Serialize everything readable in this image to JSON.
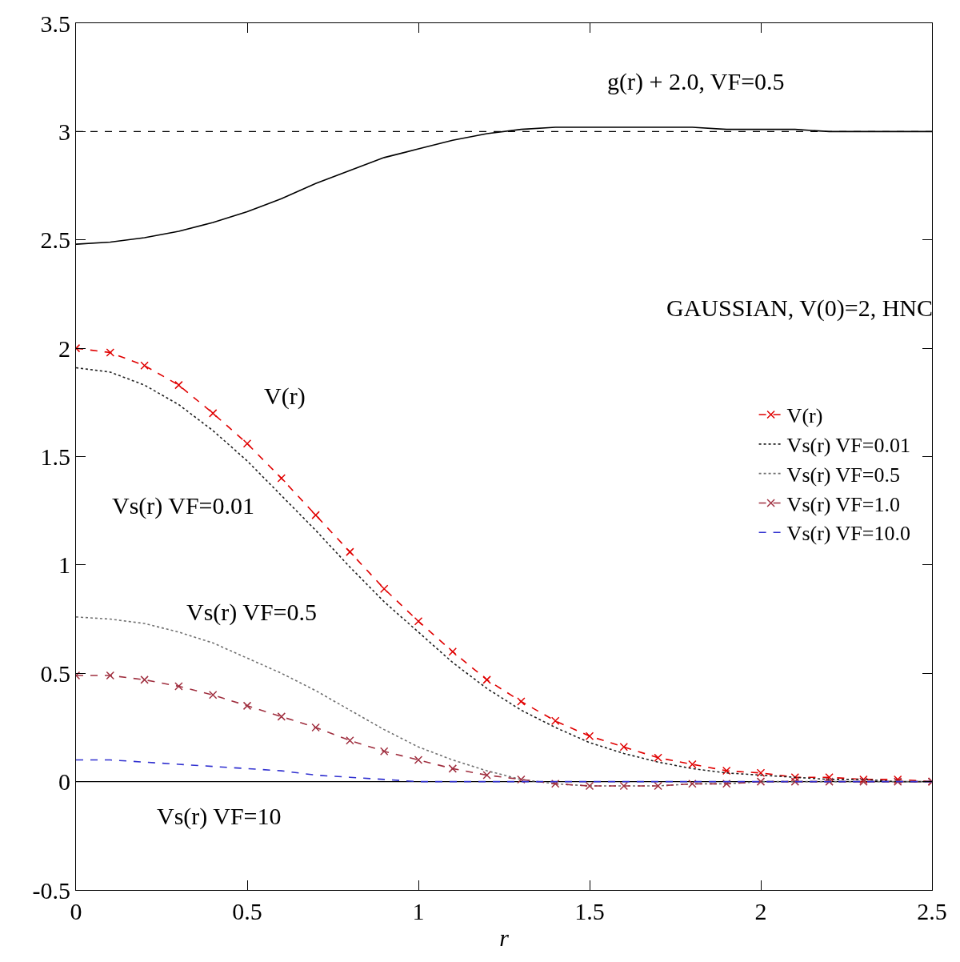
{
  "chart_data": {
    "type": "line",
    "xlabel": "r",
    "x": [
      0,
      0.1,
      0.2,
      0.3,
      0.4,
      0.5,
      0.6,
      0.7,
      0.8,
      0.9,
      1,
      1.1,
      1.2,
      1.3,
      1.4,
      1.5,
      1.6,
      1.7,
      1.8,
      1.9,
      2,
      2.1,
      2.2,
      2.3,
      2.4,
      2.5
    ],
    "series": [
      {
        "name": "V(r)",
        "color": "#e00000",
        "marker": "cross",
        "line_style": "dashed",
        "values": [
          2,
          1.98,
          1.92,
          1.83,
          1.7,
          1.56,
          1.4,
          1.23,
          1.06,
          0.89,
          0.74,
          0.6,
          0.47,
          0.37,
          0.28,
          0.21,
          0.16,
          0.11,
          0.08,
          0.05,
          0.04,
          0.02,
          0.02,
          0.01,
          0.01,
          0
        ]
      },
      {
        "name": "Vs(r) VF=0.01",
        "color": "#202020",
        "marker": "none",
        "line_style": "dotted",
        "values": [
          1.91,
          1.89,
          1.83,
          1.74,
          1.62,
          1.48,
          1.32,
          1.16,
          0.99,
          0.83,
          0.69,
          0.55,
          0.43,
          0.33,
          0.25,
          0.18,
          0.13,
          0.09,
          0.06,
          0.04,
          0.03,
          0.02,
          0.01,
          0.01,
          0,
          0
        ]
      },
      {
        "name": "Vs(r) VF=0.5",
        "color": "#707070",
        "marker": "none",
        "line_style": "dotted",
        "values": [
          0.76,
          0.75,
          0.73,
          0.69,
          0.64,
          0.57,
          0.5,
          0.42,
          0.33,
          0.24,
          0.16,
          0.1,
          0.05,
          0.01,
          -0.01,
          -0.02,
          -0.02,
          -0.02,
          -0.01,
          -0.01,
          0,
          0,
          0,
          0,
          0,
          0
        ]
      },
      {
        "name": "Vs(r) VF=1.0",
        "color": "#a03040",
        "marker": "cross",
        "line_style": "dashed",
        "values": [
          0.49,
          0.49,
          0.47,
          0.44,
          0.4,
          0.35,
          0.3,
          0.25,
          0.19,
          0.14,
          0.1,
          0.06,
          0.03,
          0.01,
          -0.01,
          -0.02,
          -0.02,
          -0.02,
          -0.01,
          -0.01,
          0,
          0,
          0,
          0,
          0,
          0
        ]
      },
      {
        "name": "Vs(r) VF=10.0",
        "color": "#3030d0",
        "marker": "none",
        "line_style": "dashed",
        "values": [
          0.1,
          0.1,
          0.09,
          0.08,
          0.07,
          0.06,
          0.05,
          0.03,
          0.02,
          0.01,
          0,
          0,
          0,
          0,
          0,
          0,
          0,
          0,
          0,
          0,
          0,
          0,
          0,
          0,
          0,
          0
        ]
      },
      {
        "color": "#000000",
        "marker": "none",
        "line_style": "solid",
        "values": [
          2.48,
          2.49,
          2.51,
          2.54,
          2.58,
          2.63,
          2.69,
          2.76,
          2.82,
          2.88,
          2.92,
          2.96,
          2.99,
          3.01,
          3.02,
          3.02,
          3.02,
          3.02,
          3.02,
          3.01,
          3.01,
          3.01,
          3.0,
          3.0,
          3.0,
          3.0
        ]
      }
    ],
    "ref_lines": [
      {
        "axis": "y",
        "value": 3,
        "color": "#000000",
        "line_style": "dashed"
      },
      {
        "axis": "y",
        "value": 0,
        "color": "#000000",
        "line_style": "solid"
      }
    ],
    "annotations": [
      "g(r) + 2.0, VF=0.5",
      "GAUSSIAN, V(0)=2, HNC",
      "V(r)",
      "Vs(r) VF=0.01",
      "Vs(r) VF=0.5",
      "Vs(r) VF=10"
    ],
    "xlim": [
      0,
      2.5
    ],
    "xticks": [
      0,
      0.5,
      1,
      1.5,
      2,
      2.5
    ],
    "ylim": [
      -0.5,
      3.5
    ],
    "yticks": [
      -0.5,
      0,
      0.5,
      1,
      1.5,
      2,
      2.5,
      3,
      3.5
    ],
    "grid": false,
    "legend": "right"
  }
}
